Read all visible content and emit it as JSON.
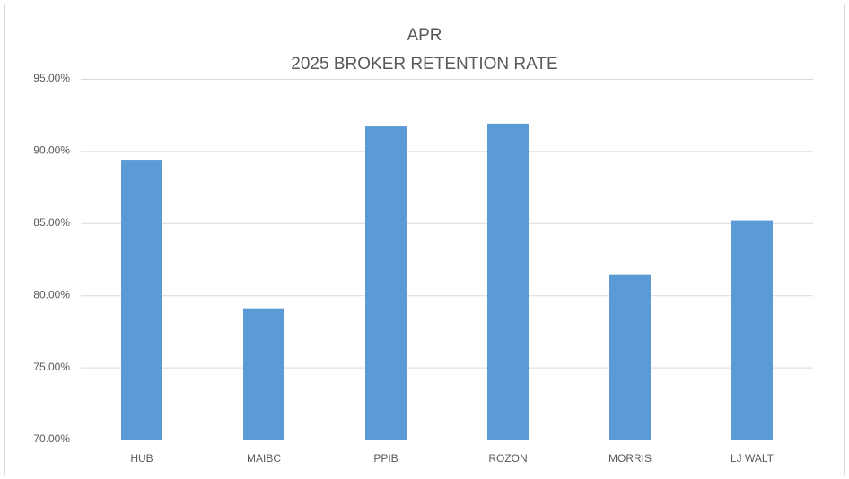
{
  "chart_data": {
    "type": "bar",
    "title": "APR",
    "subtitle": "2025 BROKER RETENTION RATE",
    "categories": [
      "HUB",
      "MAIBC",
      "PPIB",
      "ROZON",
      "MORRIS",
      "LJ WALT"
    ],
    "values": [
      89.4,
      79.1,
      91.7,
      91.9,
      81.4,
      85.2
    ],
    "color": "#5b9bd5",
    "ylim": [
      70,
      95
    ],
    "yticks": [
      {
        "value": 70,
        "label": "70.00%"
      },
      {
        "value": 75,
        "label": "75.00%"
      },
      {
        "value": 80,
        "label": "80.00%"
      },
      {
        "value": 85,
        "label": "85.00%"
      },
      {
        "value": 90,
        "label": "90.00%"
      },
      {
        "value": 95,
        "label": "95.00%"
      }
    ],
    "grid": true
  }
}
